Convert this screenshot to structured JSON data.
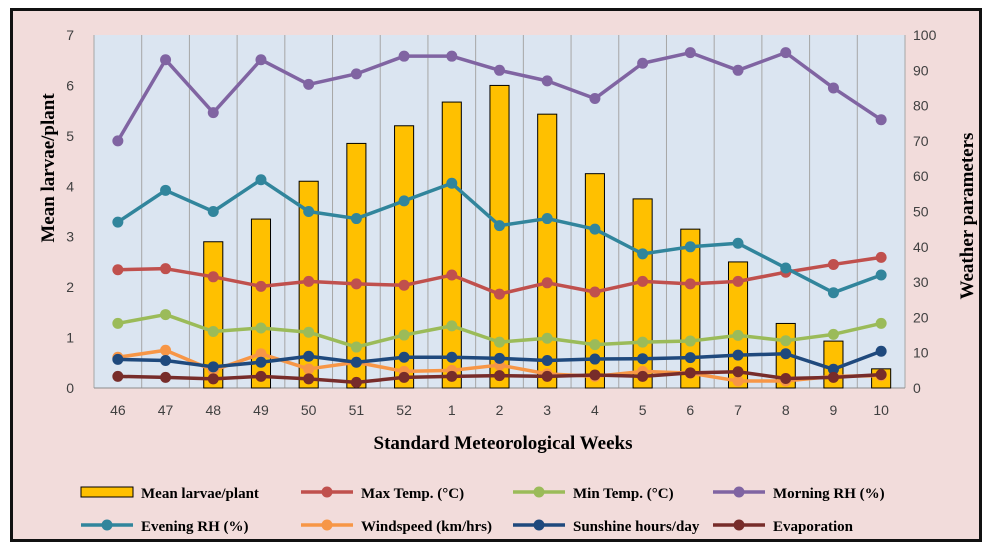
{
  "chart_data": {
    "type": "bar+line",
    "categories": [
      "46",
      "47",
      "48",
      "49",
      "50",
      "51",
      "52",
      "1",
      "2",
      "3",
      "4",
      "5",
      "6",
      "7",
      "8",
      "9",
      "10"
    ],
    "xlabel": "Standard Meteorological Weeks",
    "ylabel_left": "Mean larvae/plant",
    "ylabel_right": "Weather parameters",
    "ylim_left": [
      0,
      7
    ],
    "yticks_left": [
      0,
      1,
      2,
      3,
      4,
      5,
      6,
      7
    ],
    "ylim_right": [
      0,
      100
    ],
    "yticks_right": [
      0,
      10,
      20,
      30,
      40,
      50,
      60,
      70,
      80,
      90,
      100
    ],
    "grid": "vertical",
    "legend_position": "bottom",
    "bar_series": {
      "name": "Mean larvae/plant",
      "axis": "left",
      "color": "#ffc000",
      "values": [
        null,
        null,
        2.9,
        3.35,
        4.1,
        4.85,
        5.2,
        5.67,
        6.0,
        5.43,
        4.25,
        3.75,
        3.15,
        2.5,
        1.28,
        0.93,
        0.38
      ]
    },
    "line_series": [
      {
        "name": "Max Temp. (°C)",
        "axis": "right",
        "color": "#c0504d",
        "values": [
          33.5,
          33.8,
          31.5,
          28.8,
          30.2,
          29.5,
          29.1,
          32.0,
          26.6,
          29.8,
          27.2,
          30.2,
          29.5,
          30.2,
          32.8,
          35.0,
          37.0
        ]
      },
      {
        "name": "Min Temp. (°C)",
        "axis": "right",
        "color": "#9bbb59",
        "values": [
          18.3,
          20.8,
          16.0,
          17.0,
          15.8,
          11.6,
          15.0,
          17.6,
          13.0,
          14.1,
          12.3,
          13.0,
          13.3,
          14.9,
          13.4,
          15.2,
          18.3
        ]
      },
      {
        "name": "Morning RH (%)",
        "axis": "right",
        "color": "#8064a2",
        "values": [
          70,
          93,
          78,
          93,
          86,
          89,
          94,
          94,
          90,
          87,
          82,
          92,
          95,
          90,
          95,
          85,
          76
        ]
      },
      {
        "name": "Evening RH (%)",
        "axis": "right",
        "color": "#31859c",
        "values": [
          47,
          56,
          50,
          59,
          50,
          48,
          53,
          58,
          46,
          48,
          45,
          38,
          40,
          41,
          34,
          27,
          32
        ]
      },
      {
        "name": "Windspeed (km/hrs)",
        "axis": "right",
        "color": "#f79646",
        "values": [
          8.7,
          10.7,
          5.0,
          9.7,
          5.4,
          7.3,
          4.7,
          5.0,
          6.5,
          4.0,
          3.3,
          4.7,
          4.2,
          2.0,
          2.0,
          3.3,
          3.5
        ]
      },
      {
        "name": "Sunshine hours/day",
        "axis": "right",
        "color": "#1f497d",
        "values": [
          8.1,
          7.8,
          6.0,
          7.3,
          9.0,
          7.3,
          8.7,
          8.7,
          8.4,
          7.8,
          8.2,
          8.3,
          8.6,
          9.3,
          9.7,
          5.3,
          10.4
        ]
      },
      {
        "name": "Evaporation",
        "axis": "right",
        "color": "#772c2a",
        "values": [
          3.3,
          3.0,
          2.6,
          3.3,
          2.6,
          1.6,
          3.0,
          3.3,
          3.5,
          3.3,
          3.7,
          3.3,
          4.3,
          4.6,
          2.7,
          3.0,
          3.8
        ]
      }
    ]
  }
}
